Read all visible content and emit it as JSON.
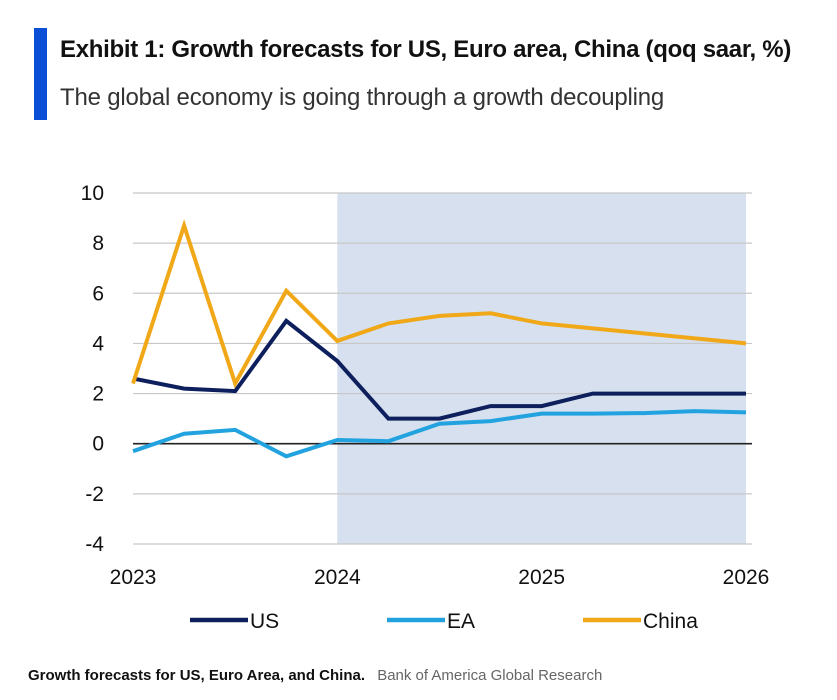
{
  "header": {
    "title": "Exhibit 1: Growth forecasts for US, Euro area, China (qoq saar, %)",
    "subtitle": "The global economy is going through a growth decoupling"
  },
  "caption": {
    "text": "Growth forecasts for US, Euro Area, and China.",
    "source": "Bank of America Global Research"
  },
  "colors": {
    "accent": "#0a4fd6",
    "forecast_shade": "#d6e0ee",
    "grid": "#c8c8c8",
    "zero_line": "#222222"
  },
  "chart_data": {
    "type": "line",
    "title": "Exhibit 1: Growth forecasts for US, Euro area, China (qoq saar, %)",
    "subtitle": "The global economy is going through a growth decoupling",
    "x": [
      "2023Q1",
      "2023Q2",
      "2023Q3",
      "2023Q4",
      "2024Q1",
      "2024Q2",
      "2024Q3",
      "2024Q4",
      "2025Q1",
      "2025Q2",
      "2025Q3",
      "2025Q4",
      "2026Q1"
    ],
    "x_tick_labels": [
      "2023",
      "2024",
      "2025",
      "2026"
    ],
    "x_tick_positions": [
      "2023Q1",
      "2024Q1",
      "2025Q1",
      "2026Q1"
    ],
    "ylim": [
      -4,
      10
    ],
    "y_ticks": [
      10,
      8,
      6,
      4,
      2,
      0,
      -2,
      -4
    ],
    "grid": true,
    "shaded_region": {
      "from": "2024Q1",
      "to": "2026Q1",
      "color": "#d6e0ee"
    },
    "legend_position": "bottom",
    "series": [
      {
        "name": "US",
        "color": "#0d1f5c",
        "values": [
          2.6,
          2.2,
          2.1,
          4.9,
          3.3,
          1.0,
          1.0,
          1.5,
          1.5,
          2.0,
          2.0,
          2.0,
          2.0
        ]
      },
      {
        "name": "EA",
        "color": "#22a3e0",
        "values": [
          -0.3,
          0.4,
          0.55,
          -0.5,
          0.15,
          0.1,
          0.8,
          0.9,
          1.2,
          1.2,
          1.22,
          1.3,
          1.25
        ]
      },
      {
        "name": "China",
        "color": "#f0a818",
        "values": [
          2.4,
          8.7,
          2.4,
          6.1,
          4.1,
          4.8,
          5.1,
          5.2,
          4.8,
          4.6,
          4.4,
          4.2,
          4.0
        ]
      }
    ]
  }
}
